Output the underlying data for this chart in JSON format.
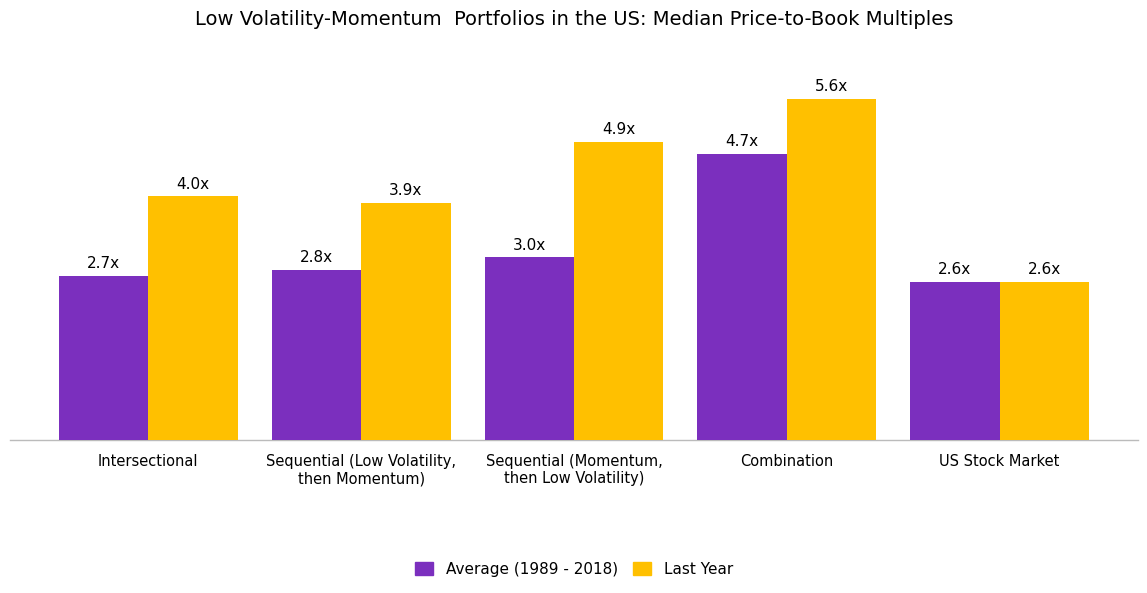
{
  "title": "Low Volatility-Momentum  Portfolios in the US: Median Price-to-Book Multiples",
  "categories": [
    "Intersectional",
    "Sequential (Low Volatility,\nthen Momentum)",
    "Sequential (Momentum,\nthen Low Volatility)",
    "Combination",
    "US Stock Market"
  ],
  "average_values": [
    2.7,
    2.8,
    3.0,
    4.7,
    2.6
  ],
  "lastyear_values": [
    4.0,
    3.9,
    4.9,
    5.6,
    2.6
  ],
  "average_labels": [
    "2.7x",
    "2.8x",
    "3.0x",
    "4.7x",
    "2.6x"
  ],
  "lastyear_labels": [
    "4.0x",
    "3.9x",
    "4.9x",
    "5.6x",
    "2.6x"
  ],
  "bar_color_avg": "#7B2FBE",
  "bar_color_last": "#FFC000",
  "legend_avg": "Average (1989 - 2018)",
  "legend_last": "Last Year",
  "ylim": [
    0,
    6.5
  ],
  "bar_width": 0.42,
  "title_fontsize": 14,
  "label_fontsize": 11,
  "tick_fontsize": 10.5,
  "legend_fontsize": 11,
  "background_color": "#ffffff"
}
